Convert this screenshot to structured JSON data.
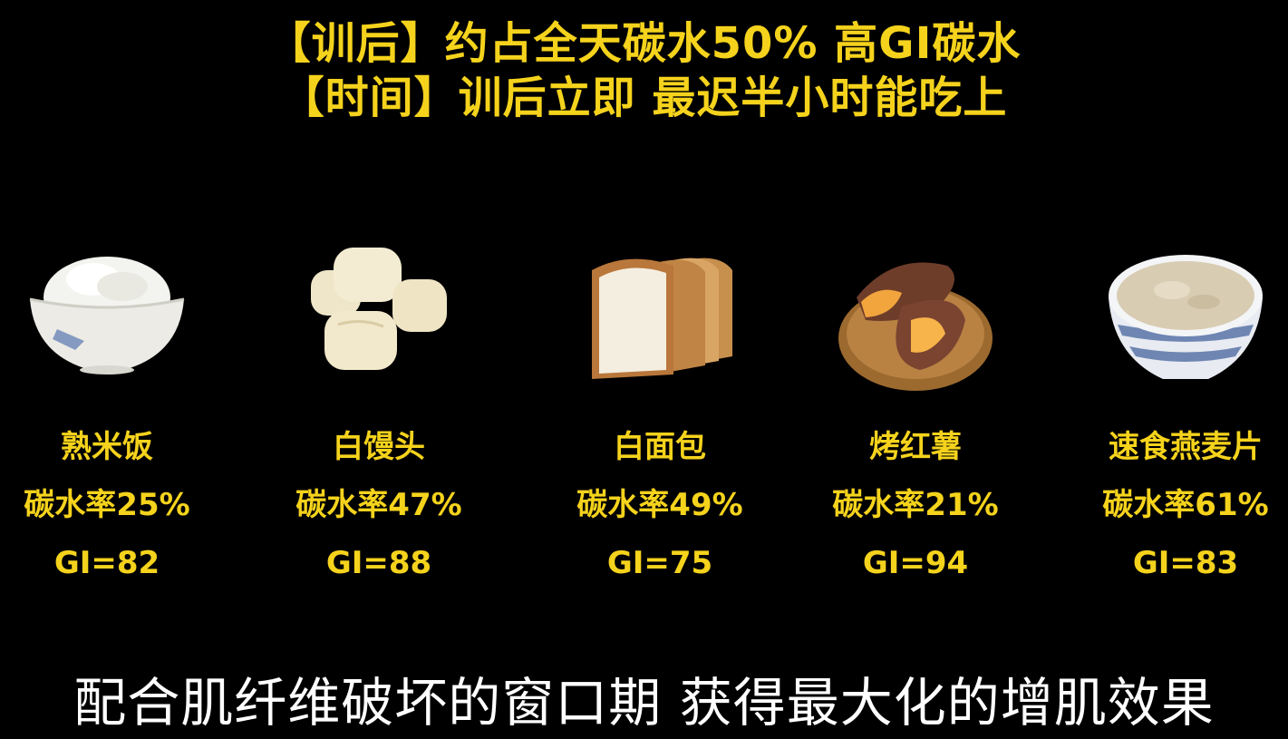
{
  "header": {
    "line1": "【训后】约占全天碳水50% 高GI碳水",
    "line2": "【时间】训后立即 最迟半小时能吃上"
  },
  "foods": [
    {
      "icon": "rice-bowl-icon",
      "name": "熟米饭",
      "rate": "碳水率25%",
      "gi": "GI=82"
    },
    {
      "icon": "steamed-buns-icon",
      "name": "白馒头",
      "rate": "碳水率47%",
      "gi": "GI=88"
    },
    {
      "icon": "white-bread-icon",
      "name": "白面包",
      "rate": "碳水率49%",
      "gi": "GI=75"
    },
    {
      "icon": "roasted-sweet-potato-icon",
      "name": "烤红薯",
      "rate": "碳水率21%",
      "gi": "GI=94"
    },
    {
      "icon": "instant-oatmeal-icon",
      "name": "速食燕麦片",
      "rate": "碳水率61%",
      "gi": "GI=83"
    }
  ],
  "subtitle": "配合肌纤维破坏的窗口期 获得最大化的增肌效果",
  "colors": {
    "accent": "#f5d31c",
    "background": "#000000",
    "subtitle": "#ffffff"
  }
}
